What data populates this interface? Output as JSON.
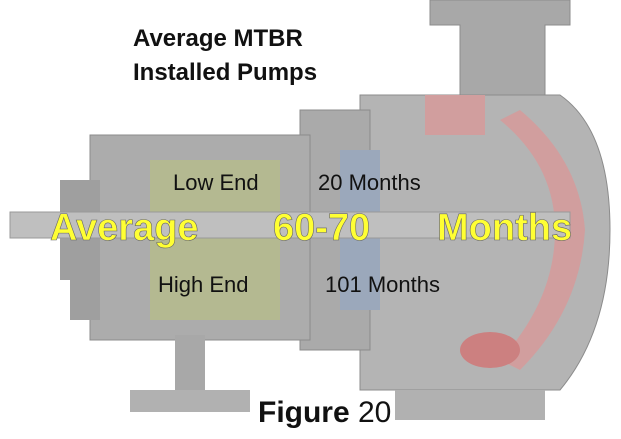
{
  "title": {
    "line1": "Average MTBR",
    "line2": "Installed Pumps"
  },
  "low_end": {
    "label": "Low End",
    "value": "20 Months"
  },
  "average": {
    "label": "Average",
    "value": "60-70",
    "unit": "Months"
  },
  "high_end": {
    "label": "High End",
    "value": "101 Months"
  },
  "caption": {
    "word": "Figure",
    "number": "20"
  }
}
